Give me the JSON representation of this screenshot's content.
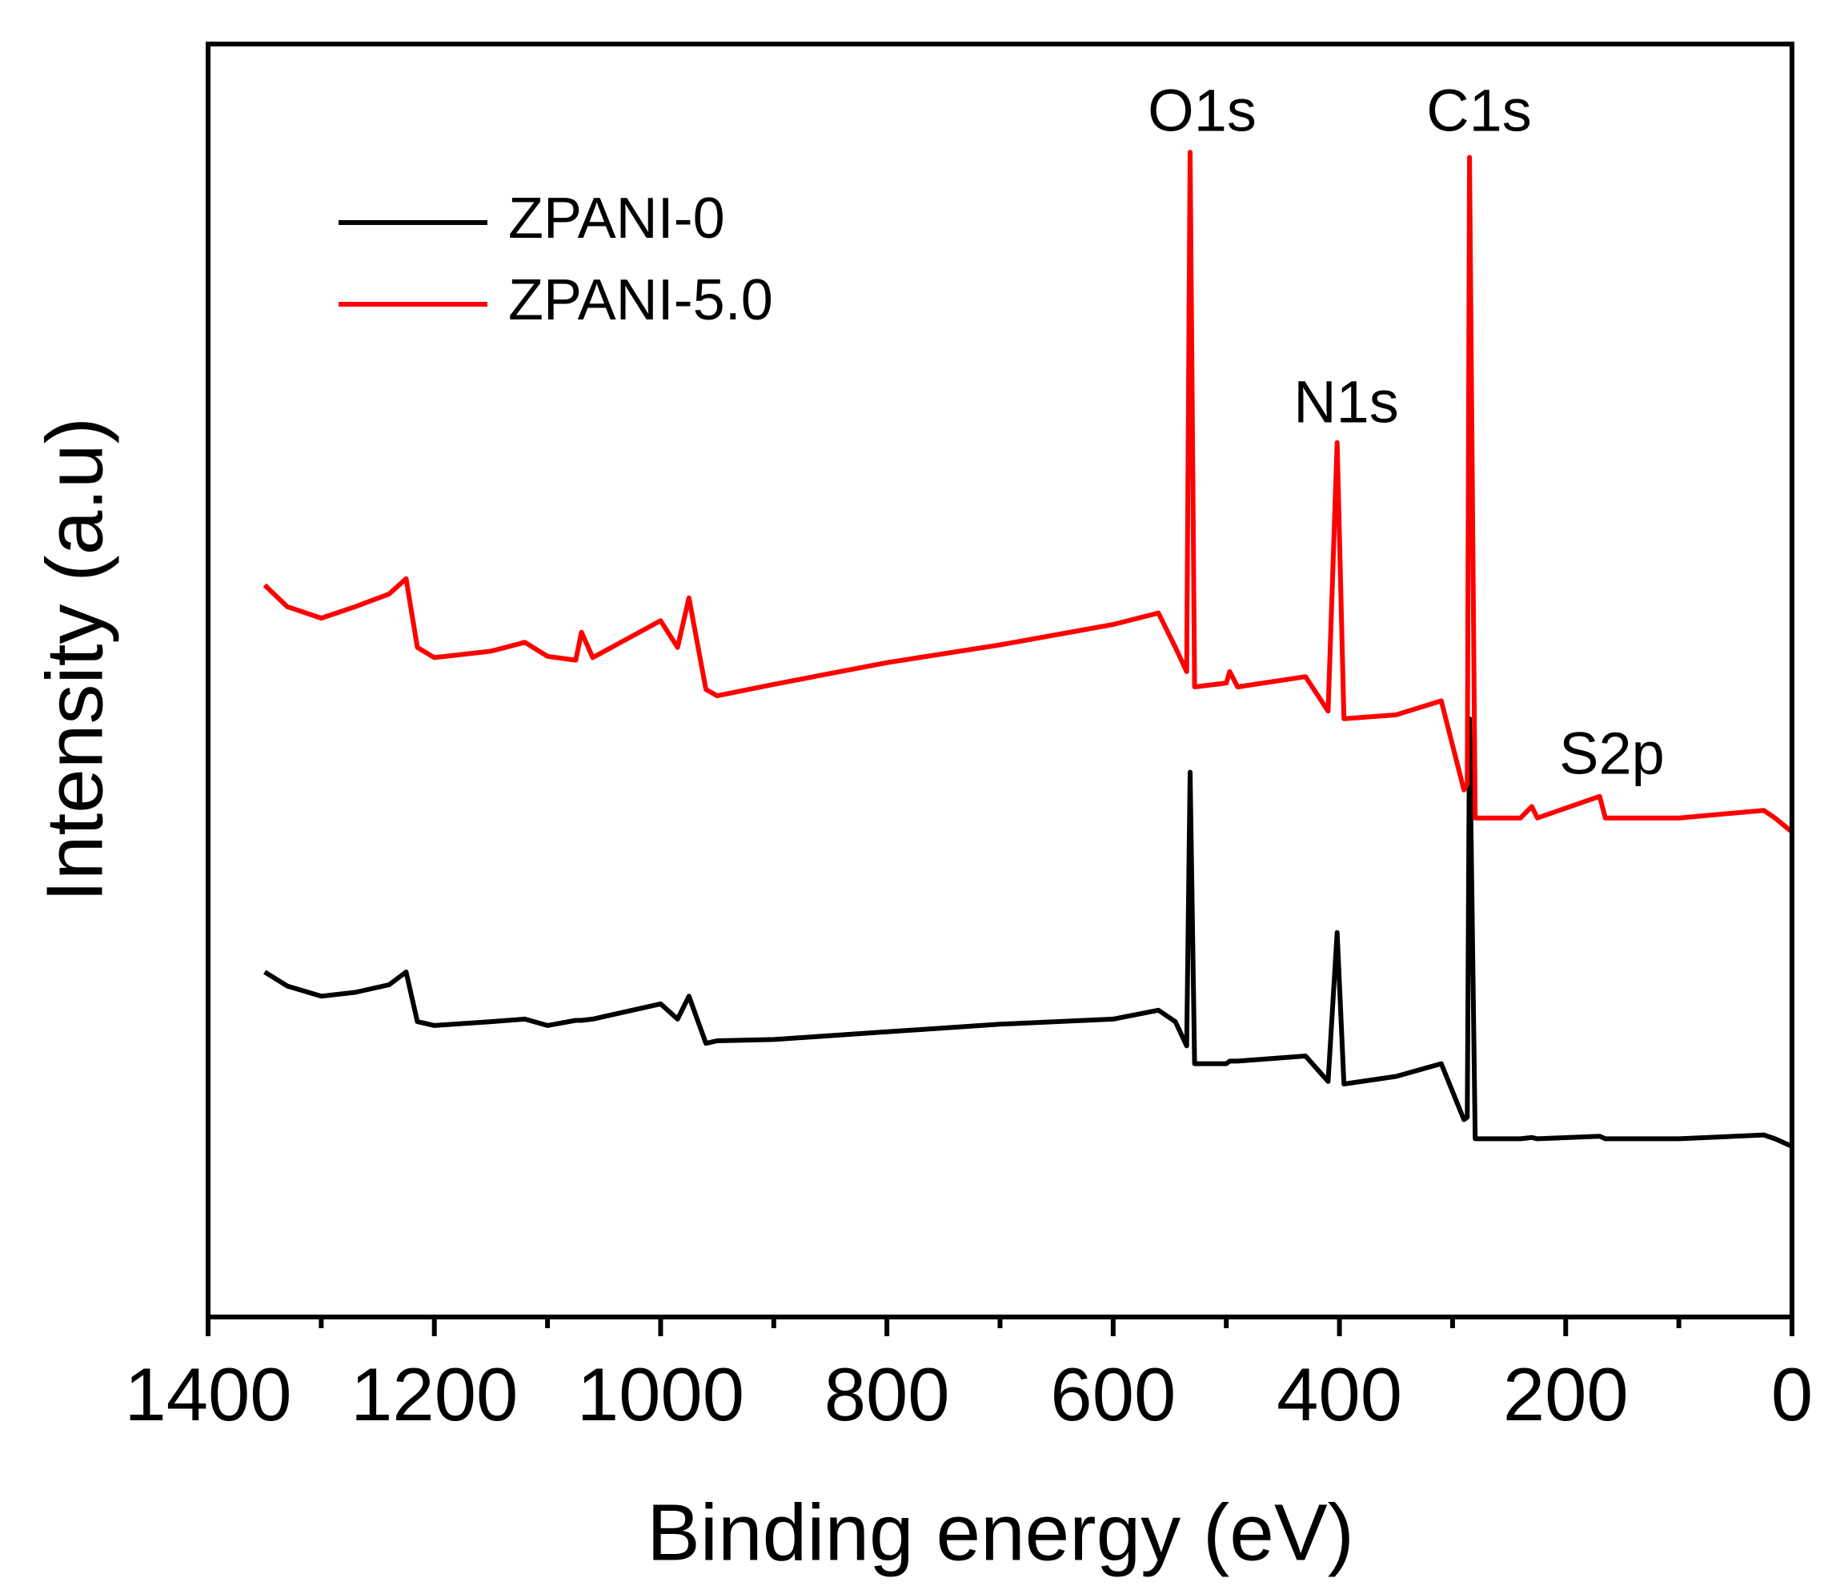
{
  "chart_data": {
    "type": "line",
    "xlabel": "Binding energy (eV)",
    "ylabel": "Intensity (a.u)",
    "xlim": [
      1400,
      0
    ],
    "xticks": [
      1400,
      1200,
      1000,
      800,
      600,
      400,
      200,
      0
    ],
    "ylim": [
      0,
      100
    ],
    "legend": "upper left",
    "annotations": [
      "O1s",
      "C1s",
      "N1s",
      "S2p"
    ],
    "x": [
      1350,
      1330,
      1300,
      1270,
      1240,
      1225,
      1215,
      1200,
      1150,
      1120,
      1100,
      1075,
      1070,
      1060,
      1000,
      985,
      975,
      960,
      950,
      900,
      800,
      700,
      600,
      560,
      545,
      535,
      532,
      528,
      500,
      497,
      490,
      430,
      410,
      402,
      396,
      350,
      310,
      290,
      287,
      285,
      280,
      240,
      230,
      225,
      170,
      165,
      100,
      25,
      15,
      0
    ],
    "series": [
      {
        "name": "ZPANI-0",
        "color": "#000000",
        "values": [
          27.1,
          26.0,
          25.2,
          25.5,
          26.1,
          27.1,
          23.2,
          22.9,
          23.2,
          23.4,
          22.9,
          23.3,
          23.3,
          23.4,
          24.6,
          23.4,
          25.2,
          21.5,
          21.7,
          21.8,
          22.4,
          23.0,
          23.4,
          24.1,
          23.2,
          21.3,
          42.8,
          19.9,
          19.9,
          20.1,
          20.1,
          20.5,
          18.5,
          30.2,
          18.3,
          18.9,
          19.9,
          15.5,
          15.7,
          47.0,
          14.0,
          14.0,
          14.1,
          14.0,
          14.2,
          14.0,
          14.0,
          14.3,
          14.0,
          13.4
        ]
      },
      {
        "name": "ZPANI-5.0",
        "color": "#ff0000",
        "values": [
          57.5,
          55.8,
          54.9,
          55.8,
          56.8,
          58.0,
          52.6,
          51.8,
          52.3,
          53.0,
          51.9,
          51.6,
          53.8,
          51.8,
          54.7,
          52.6,
          56.5,
          49.3,
          48.8,
          49.7,
          51.4,
          52.8,
          54.4,
          55.3,
          52.6,
          50.7,
          91.5,
          49.5,
          49.8,
          50.7,
          49.5,
          50.3,
          47.6,
          68.7,
          47.0,
          47.3,
          48.4,
          41.4,
          41.9,
          91.1,
          39.2,
          39.2,
          40.1,
          39.2,
          40.9,
          39.2,
          39.2,
          39.8,
          39.2,
          38.1
        ]
      }
    ]
  }
}
